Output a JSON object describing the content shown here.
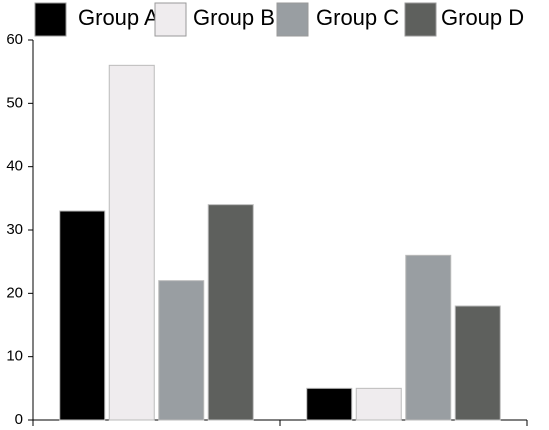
{
  "chart_data": {
    "type": "bar",
    "categories": [
      null,
      null
    ],
    "series": [
      {
        "name": "Group A",
        "color": "#000000",
        "values": [
          33,
          5
        ]
      },
      {
        "name": "Group B",
        "color": "#efecee",
        "values": [
          56,
          5
        ]
      },
      {
        "name": "Group C",
        "color": "#999ea2",
        "values": [
          22,
          26
        ]
      },
      {
        "name": "Group D",
        "color": "#5e605d",
        "values": [
          34,
          18
        ]
      }
    ],
    "ylim": [
      0,
      60
    ],
    "yticks": [
      0,
      10,
      20,
      30,
      40,
      50,
      60
    ],
    "grid": false,
    "legend": "top"
  }
}
